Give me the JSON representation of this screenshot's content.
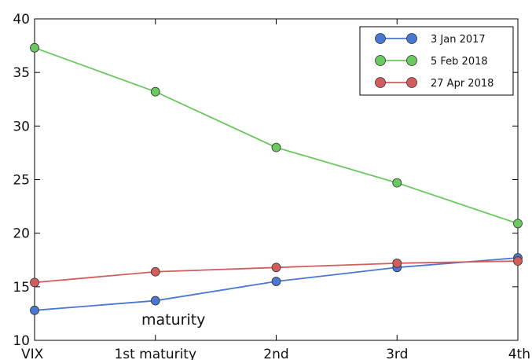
{
  "chart_data": {
    "type": "line",
    "categories": [
      "VIX",
      "1st maturity",
      "2nd",
      "3rd",
      "4th"
    ],
    "ylim": [
      10,
      40
    ],
    "yticks": [
      10,
      15,
      20,
      25,
      30,
      35,
      40
    ],
    "grid": false,
    "legend_position": "top-right",
    "annotation": "maturity",
    "series": [
      {
        "name": "3 Jan 2017",
        "color": "#4a77d0",
        "values": [
          12.8,
          13.7,
          15.5,
          16.8,
          17.7
        ]
      },
      {
        "name": "5 Feb 2018",
        "color": "#6cc860",
        "values": [
          37.3,
          33.2,
          28.0,
          24.7,
          20.9
        ]
      },
      {
        "name": "27 Apr 2018",
        "color": "#d15d5d",
        "values": [
          15.4,
          16.4,
          16.8,
          17.2,
          17.4
        ]
      }
    ]
  }
}
